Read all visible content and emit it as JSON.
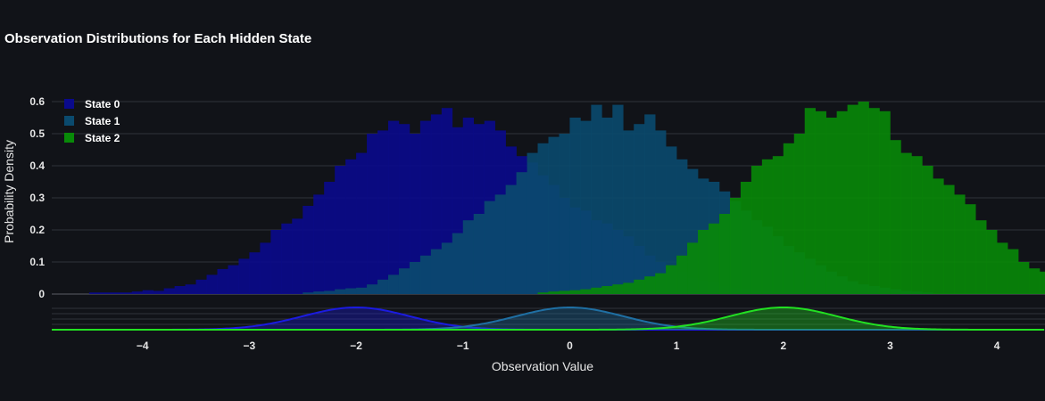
{
  "chart_data": {
    "type": "histogram",
    "title": "Observation Distributions for Each Hidden State",
    "xlabel": "Observation Value",
    "ylabel": "Probability Density",
    "xlim": [
      -4.85,
      4.45
    ],
    "ylim": [
      0,
      0.6
    ],
    "x_ticks": [
      "−4",
      "−3",
      "−2",
      "−1",
      "0",
      "1",
      "2",
      "3",
      "4"
    ],
    "x_tick_values": [
      -4,
      -3,
      -2,
      -1,
      0,
      1,
      2,
      3,
      4
    ],
    "y_ticks": [
      "0",
      "0.1",
      "0.2",
      "0.3",
      "0.4",
      "0.5",
      "0.6"
    ],
    "y_tick_values": [
      0,
      0.1,
      0.2,
      0.3,
      0.4,
      0.5,
      0.6
    ],
    "bin_width": 0.1,
    "legend_position": "top-left",
    "series": [
      {
        "name": "State 0",
        "color": "#0a0a8c",
        "curve_color": "#1b1be0",
        "bin_start": -4.5,
        "values": [
          0.005,
          0.005,
          0.005,
          0.005,
          0.008,
          0.012,
          0.01,
          0.018,
          0.025,
          0.03,
          0.045,
          0.06,
          0.078,
          0.09,
          0.11,
          0.13,
          0.16,
          0.2,
          0.22,
          0.235,
          0.275,
          0.31,
          0.35,
          0.4,
          0.42,
          0.44,
          0.5,
          0.51,
          0.54,
          0.53,
          0.5,
          0.54,
          0.56,
          0.58,
          0.52,
          0.55,
          0.53,
          0.54,
          0.51,
          0.46,
          0.43,
          0.41,
          0.37,
          0.34,
          0.3,
          0.27,
          0.26,
          0.23,
          0.22,
          0.2,
          0.18,
          0.15,
          0.12,
          0.1,
          0.09,
          0.07,
          0.05,
          0.04,
          0.035,
          0.025,
          0.02,
          0.015,
          0.01,
          0.008,
          0.005,
          0.005,
          0.005
        ],
        "mean": -2.0,
        "std": 0.5
      },
      {
        "name": "State 1",
        "color": "#0a4a6e",
        "curve_color": "#1f6fa3",
        "bin_start": -2.5,
        "values": [
          0.005,
          0.008,
          0.01,
          0.015,
          0.018,
          0.02,
          0.03,
          0.045,
          0.06,
          0.08,
          0.1,
          0.12,
          0.14,
          0.16,
          0.19,
          0.23,
          0.25,
          0.29,
          0.31,
          0.34,
          0.38,
          0.44,
          0.47,
          0.49,
          0.5,
          0.55,
          0.54,
          0.59,
          0.55,
          0.59,
          0.51,
          0.53,
          0.56,
          0.51,
          0.46,
          0.42,
          0.39,
          0.36,
          0.35,
          0.32,
          0.29,
          0.26,
          0.23,
          0.21,
          0.18,
          0.15,
          0.13,
          0.11,
          0.09,
          0.07,
          0.055,
          0.04,
          0.03,
          0.025,
          0.02,
          0.015,
          0.01,
          0.008,
          0.005
        ],
        "mean": 0.0,
        "std": 0.5
      },
      {
        "name": "State 2",
        "color": "#088a08",
        "curve_color": "#22e022",
        "bin_start": -0.3,
        "values": [
          0.005,
          0.008,
          0.01,
          0.012,
          0.015,
          0.02,
          0.025,
          0.03,
          0.035,
          0.045,
          0.055,
          0.065,
          0.09,
          0.12,
          0.16,
          0.2,
          0.22,
          0.25,
          0.3,
          0.35,
          0.4,
          0.42,
          0.43,
          0.47,
          0.5,
          0.58,
          0.57,
          0.55,
          0.57,
          0.59,
          0.6,
          0.58,
          0.57,
          0.48,
          0.44,
          0.43,
          0.4,
          0.36,
          0.34,
          0.31,
          0.28,
          0.23,
          0.2,
          0.16,
          0.14,
          0.1,
          0.08,
          0.07,
          0.05,
          0.035,
          0.025,
          0.015,
          0.015,
          0.01,
          0.008,
          0.005,
          0.005
        ],
        "mean": 2.0,
        "std": 0.5
      }
    ]
  }
}
